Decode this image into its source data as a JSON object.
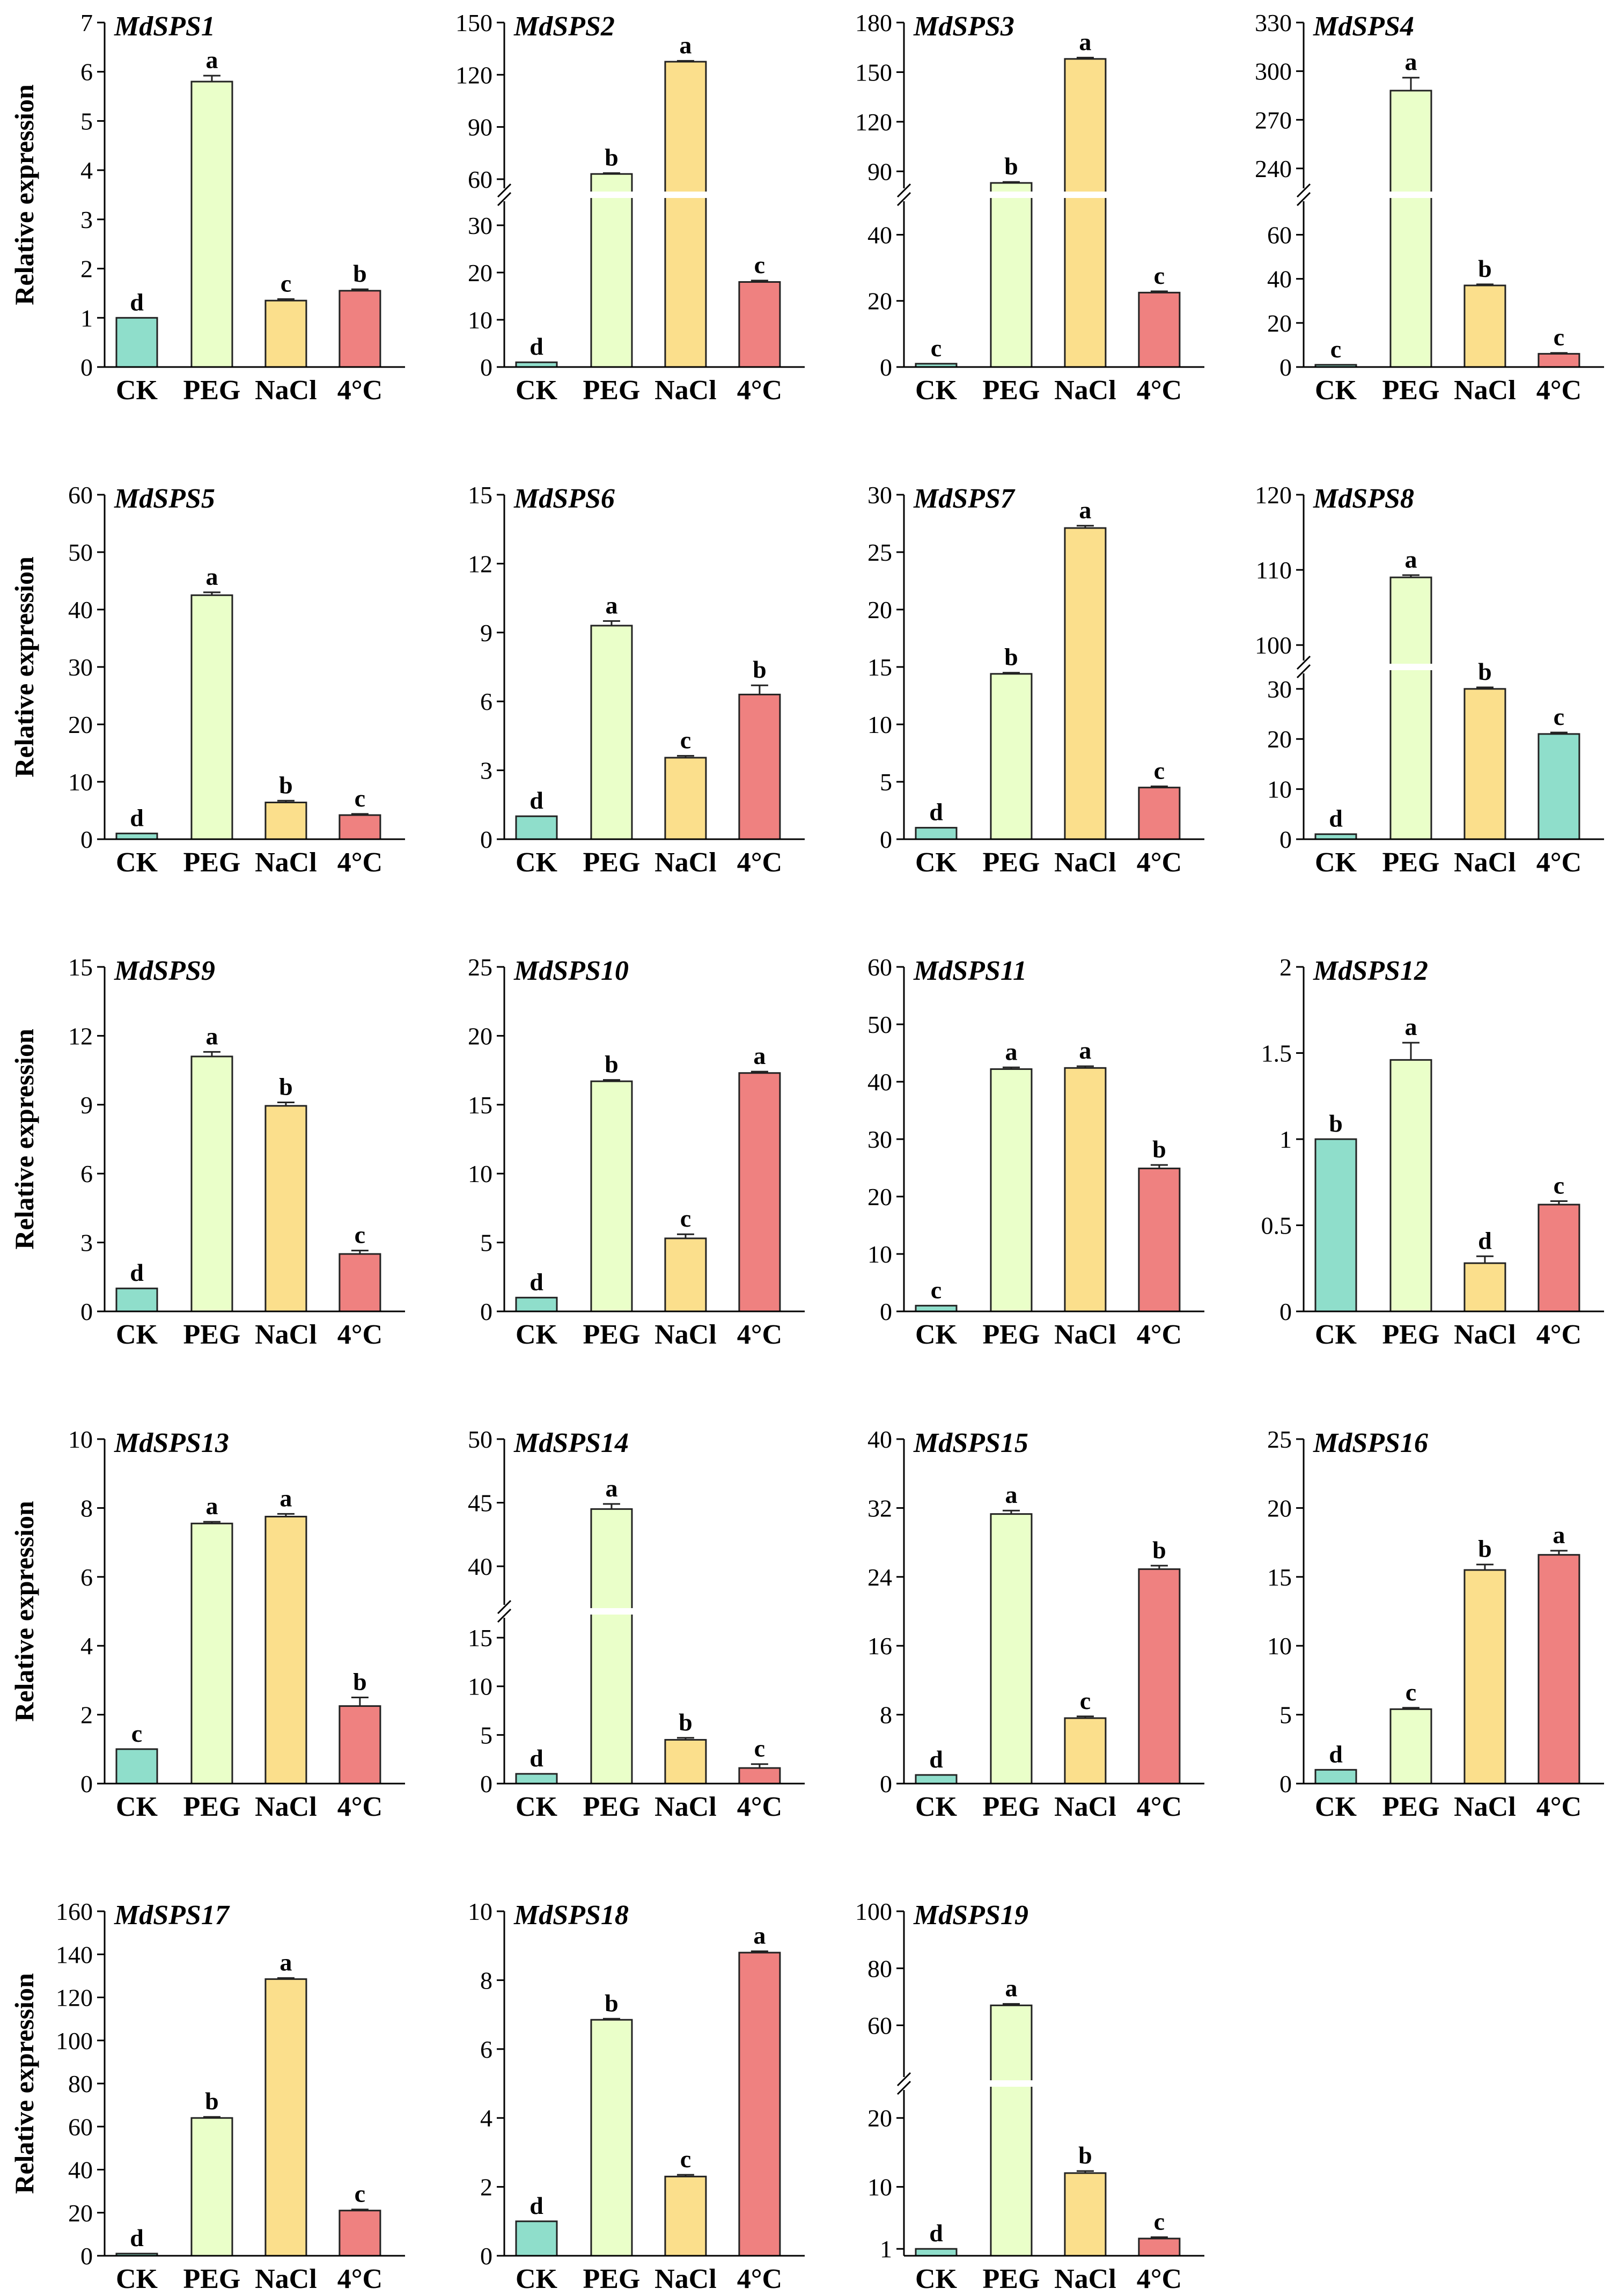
{
  "figure": {
    "ylabel": "Relative expression",
    "categories": [
      "CK",
      "PEG",
      "NaCl",
      "4°C"
    ]
  },
  "colors": {
    "CK": "#8FDECB",
    "PEG": "#EAFFC9",
    "NaCl": "#FBDF8C",
    "cold": "#EF8180"
  },
  "chart_data": [
    {
      "type": "bar",
      "title": "MdSPS1",
      "categories": [
        "CK",
        "PEG",
        "NaCl",
        "4°C"
      ],
      "values": [
        1,
        5.8,
        1.35,
        1.55
      ],
      "errors": [
        0,
        0.12,
        0.03,
        0.03
      ],
      "letters": [
        "d",
        "a",
        "c",
        "b"
      ],
      "ylim": [
        0,
        7
      ],
      "yticks": [
        0,
        1,
        2,
        3,
        4,
        5,
        6,
        7
      ],
      "bar_colors": [
        "CK",
        "PEG",
        "NaCl",
        "cold"
      ]
    },
    {
      "type": "bar",
      "title": "MdSPS2",
      "categories": [
        "CK",
        "PEG",
        "NaCl",
        "4°C"
      ],
      "values": [
        1,
        63,
        127.5,
        18
      ],
      "errors": [
        0,
        0.5,
        0.5,
        0.3
      ],
      "letters": [
        "d",
        "b",
        "a",
        "c"
      ],
      "ylim": [
        0,
        150
      ],
      "axis_break": [
        35,
        55
      ],
      "yticks": [
        0,
        10,
        20,
        30,
        60,
        90,
        120,
        150
      ],
      "bar_colors": [
        "CK",
        "PEG",
        "NaCl",
        "cold"
      ]
    },
    {
      "type": "bar",
      "title": "MdSPS3",
      "categories": [
        "CK",
        "PEG",
        "NaCl",
        "4°C"
      ],
      "values": [
        1,
        83,
        158,
        22.5
      ],
      "errors": [
        0,
        0.6,
        0.8,
        0.4
      ],
      "letters": [
        "c",
        "b",
        "a",
        "c"
      ],
      "ylim": [
        0,
        180
      ],
      "axis_break": [
        50,
        80
      ],
      "yticks": [
        0,
        20,
        40,
        90,
        120,
        150,
        180
      ],
      "bar_colors": [
        "CK",
        "PEG",
        "NaCl",
        "cold"
      ]
    },
    {
      "type": "bar",
      "title": "MdSPS4",
      "categories": [
        "CK",
        "PEG",
        "NaCl",
        "4°C"
      ],
      "values": [
        1,
        288,
        37,
        6
      ],
      "errors": [
        0,
        8,
        0.5,
        0.4
      ],
      "letters": [
        "c",
        "a",
        "b",
        "c"
      ],
      "ylim": [
        0,
        330
      ],
      "axis_break": [
        75,
        228
      ],
      "yticks": [
        0,
        20,
        40,
        60,
        240,
        270,
        300,
        330
      ],
      "bar_colors": [
        "CK",
        "PEG",
        "NaCl",
        "cold"
      ]
    },
    {
      "type": "bar",
      "title": "MdSPS5",
      "categories": [
        "CK",
        "PEG",
        "NaCl",
        "4°C"
      ],
      "values": [
        1,
        42.5,
        6.4,
        4.2
      ],
      "errors": [
        0,
        0.5,
        0.3,
        0.2
      ],
      "letters": [
        "d",
        "a",
        "b",
        "c"
      ],
      "ylim": [
        0,
        60
      ],
      "yticks": [
        0,
        10,
        20,
        30,
        40,
        50,
        60
      ],
      "bar_colors": [
        "CK",
        "PEG",
        "NaCl",
        "cold"
      ]
    },
    {
      "type": "bar",
      "title": "MdSPS6",
      "categories": [
        "CK",
        "PEG",
        "NaCl",
        "4°C"
      ],
      "values": [
        1,
        9.3,
        3.55,
        6.3
      ],
      "errors": [
        0,
        0.2,
        0.08,
        0.4
      ],
      "letters": [
        "d",
        "a",
        "c",
        "b"
      ],
      "ylim": [
        0,
        15
      ],
      "yticks": [
        0,
        3,
        6,
        9,
        12,
        15
      ],
      "bar_colors": [
        "CK",
        "PEG",
        "NaCl",
        "cold"
      ]
    },
    {
      "type": "bar",
      "title": "MdSPS7",
      "categories": [
        "CK",
        "PEG",
        "NaCl",
        "4°C"
      ],
      "values": [
        1,
        14.4,
        27.1,
        4.5
      ],
      "errors": [
        0,
        0.1,
        0.2,
        0.1
      ],
      "letters": [
        "d",
        "b",
        "a",
        "c"
      ],
      "ylim": [
        0,
        30
      ],
      "yticks": [
        0,
        5,
        10,
        15,
        20,
        25,
        30
      ],
      "bar_colors": [
        "CK",
        "PEG",
        "NaCl",
        "cold"
      ]
    },
    {
      "type": "bar",
      "title": "MdSPS8",
      "categories": [
        "CK",
        "PEG",
        "NaCl",
        "4°C"
      ],
      "values": [
        1,
        109,
        30,
        21
      ],
      "errors": [
        0,
        0.3,
        0.3,
        0.3
      ],
      "letters": [
        "d",
        "a",
        "b",
        "c"
      ],
      "ylim": [
        0,
        120
      ],
      "axis_break": [
        33,
        98
      ],
      "yticks": [
        0,
        10,
        20,
        30,
        100,
        110,
        120
      ],
      "bar_colors": [
        "CK",
        "PEG",
        "NaCl",
        "CK"
      ]
    },
    {
      "type": "bar",
      "title": "MdSPS9",
      "categories": [
        "CK",
        "PEG",
        "NaCl",
        "4°C"
      ],
      "values": [
        1,
        11.1,
        8.95,
        2.5
      ],
      "errors": [
        0,
        0.2,
        0.15,
        0.15
      ],
      "letters": [
        "d",
        "a",
        "b",
        "c"
      ],
      "ylim": [
        0,
        15
      ],
      "yticks": [
        0,
        3,
        6,
        9,
        12,
        15
      ],
      "bar_colors": [
        "CK",
        "PEG",
        "NaCl",
        "cold"
      ]
    },
    {
      "type": "bar",
      "title": "MdSPS10",
      "categories": [
        "CK",
        "PEG",
        "NaCl",
        "4°C"
      ],
      "values": [
        1,
        16.7,
        5.3,
        17.3
      ],
      "errors": [
        0,
        0.1,
        0.3,
        0.1
      ],
      "letters": [
        "d",
        "b",
        "c",
        "a"
      ],
      "ylim": [
        0,
        25
      ],
      "yticks": [
        0,
        5,
        10,
        15,
        20,
        25
      ],
      "bar_colors": [
        "CK",
        "PEG",
        "NaCl",
        "cold"
      ]
    },
    {
      "type": "bar",
      "title": "MdSPS11",
      "categories": [
        "CK",
        "PEG",
        "NaCl",
        "4°C"
      ],
      "values": [
        1,
        42.2,
        42.4,
        24.9
      ],
      "errors": [
        0,
        0.3,
        0.3,
        0.6
      ],
      "letters": [
        "c",
        "a",
        "a",
        "b"
      ],
      "ylim": [
        0,
        60
      ],
      "yticks": [
        0,
        10,
        20,
        30,
        40,
        50,
        60
      ],
      "bar_colors": [
        "CK",
        "PEG",
        "NaCl",
        "cold"
      ]
    },
    {
      "type": "bar",
      "title": "MdSPS12",
      "categories": [
        "CK",
        "PEG",
        "NaCl",
        "4°C"
      ],
      "values": [
        1,
        1.46,
        0.28,
        0.62
      ],
      "errors": [
        0,
        0.1,
        0.04,
        0.02
      ],
      "letters": [
        "b",
        "a",
        "d",
        "c"
      ],
      "ylim": [
        0,
        2
      ],
      "yticks": [
        0,
        0.5,
        1,
        1.5,
        2
      ],
      "bar_colors": [
        "CK",
        "PEG",
        "NaCl",
        "cold"
      ]
    },
    {
      "type": "bar",
      "title": "MdSPS13",
      "categories": [
        "CK",
        "PEG",
        "NaCl",
        "4°C"
      ],
      "values": [
        1,
        7.55,
        7.75,
        2.25
      ],
      "errors": [
        0,
        0.05,
        0.08,
        0.25
      ],
      "letters": [
        "c",
        "a",
        "a",
        "b"
      ],
      "ylim": [
        0,
        10
      ],
      "yticks": [
        0,
        2,
        4,
        6,
        8,
        10
      ],
      "bar_colors": [
        "CK",
        "PEG",
        "NaCl",
        "cold"
      ]
    },
    {
      "type": "bar",
      "title": "MdSPS14",
      "categories": [
        "CK",
        "PEG",
        "NaCl",
        "4°C"
      ],
      "values": [
        1,
        44.5,
        4.5,
        1.6
      ],
      "errors": [
        0,
        0.4,
        0.2,
        0.4
      ],
      "letters": [
        "d",
        "a",
        "b",
        "c"
      ],
      "ylim": [
        0,
        50
      ],
      "axis_break": [
        17,
        37
      ],
      "yticks": [
        0,
        5,
        10,
        15,
        40,
        45,
        50
      ],
      "bar_colors": [
        "CK",
        "PEG",
        "NaCl",
        "cold"
      ]
    },
    {
      "type": "bar",
      "title": "MdSPS15",
      "categories": [
        "CK",
        "PEG",
        "NaCl",
        "4°C"
      ],
      "values": [
        1,
        31.3,
        7.6,
        24.9
      ],
      "errors": [
        0,
        0.4,
        0.2,
        0.4
      ],
      "letters": [
        "d",
        "a",
        "c",
        "b"
      ],
      "ylim": [
        0,
        40
      ],
      "yticks": [
        0,
        8,
        16,
        24,
        32,
        40
      ],
      "bar_colors": [
        "CK",
        "PEG",
        "NaCl",
        "cold"
      ]
    },
    {
      "type": "bar",
      "title": "MdSPS16",
      "categories": [
        "CK",
        "PEG",
        "NaCl",
        "4°C"
      ],
      "values": [
        1,
        5.4,
        15.5,
        16.6
      ],
      "errors": [
        0,
        0.1,
        0.4,
        0.3
      ],
      "letters": [
        "d",
        "c",
        "b",
        "a"
      ],
      "ylim": [
        0,
        25
      ],
      "yticks": [
        0,
        5,
        10,
        15,
        20,
        25
      ],
      "bar_colors": [
        "CK",
        "PEG",
        "NaCl",
        "cold"
      ]
    },
    {
      "type": "bar",
      "title": "MdSPS17",
      "categories": [
        "CK",
        "PEG",
        "NaCl",
        "4°C"
      ],
      "values": [
        1,
        64,
        128.5,
        21
      ],
      "errors": [
        0,
        0.5,
        0.5,
        0.5
      ],
      "letters": [
        "d",
        "b",
        "a",
        "c"
      ],
      "ylim": [
        0,
        160
      ],
      "yticks": [
        0,
        20,
        40,
        60,
        80,
        100,
        120,
        140,
        160
      ],
      "bar_colors": [
        "CK",
        "PEG",
        "NaCl",
        "cold"
      ]
    },
    {
      "type": "bar",
      "title": "MdSPS18",
      "categories": [
        "CK",
        "PEG",
        "NaCl",
        "4°C"
      ],
      "values": [
        1,
        6.85,
        2.3,
        8.8
      ],
      "errors": [
        0,
        0.03,
        0.05,
        0.04
      ],
      "letters": [
        "d",
        "b",
        "c",
        "a"
      ],
      "ylim": [
        0,
        10
      ],
      "yticks": [
        0,
        2,
        4,
        6,
        8,
        10
      ],
      "bar_colors": [
        "CK",
        "PEG",
        "NaCl",
        "cold"
      ]
    },
    {
      "type": "bar",
      "title": "MdSPS19",
      "categories": [
        "CK",
        "PEG",
        "NaCl",
        "4°C"
      ],
      "values": [
        1,
        67,
        12,
        2.5
      ],
      "errors": [
        0,
        0.5,
        0.3,
        0.2
      ],
      "letters": [
        "d",
        "a",
        "b",
        "c"
      ],
      "ylim": [
        0,
        100
      ],
      "axis_break": [
        24,
        42
      ],
      "yticks": [
        1,
        10,
        20,
        60,
        80,
        100
      ],
      "bar_colors": [
        "CK",
        "PEG",
        "NaCl",
        "cold"
      ]
    }
  ]
}
